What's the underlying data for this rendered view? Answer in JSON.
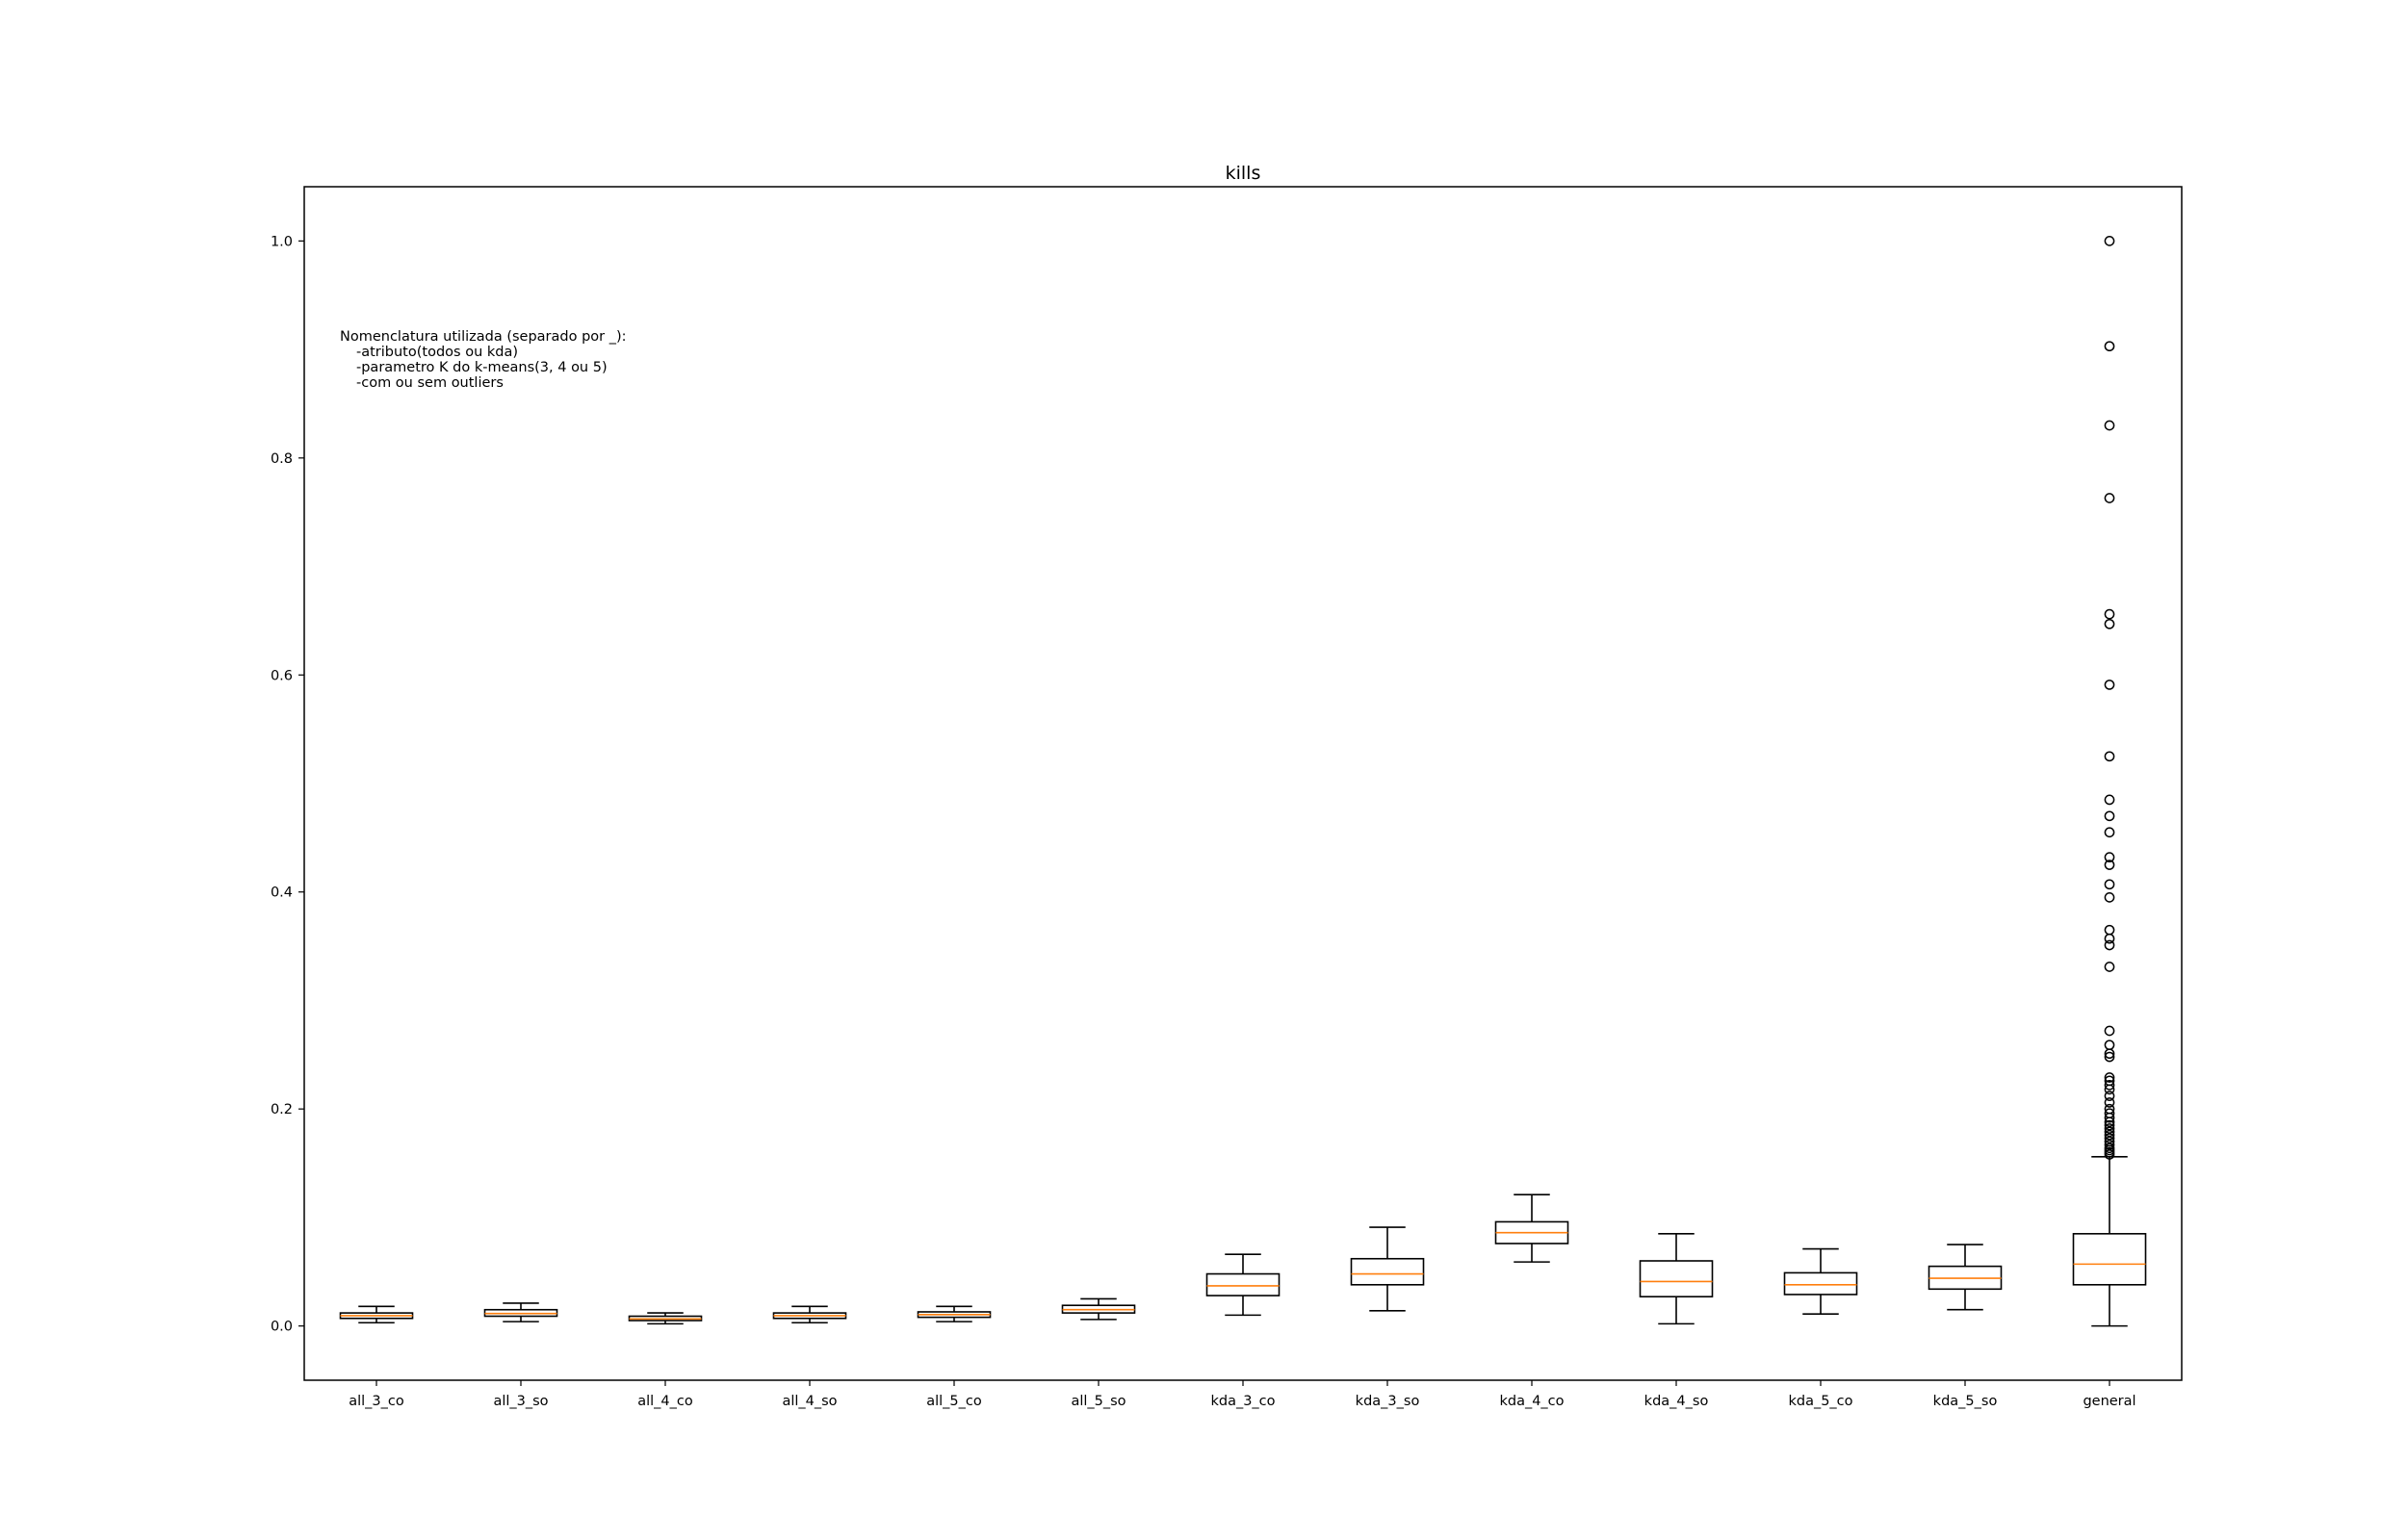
{
  "chart_data": {
    "type": "boxplot",
    "title": "kills",
    "xlabel": "",
    "ylabel": "",
    "ylim": [
      -0.05,
      1.05
    ],
    "yticks": [
      0.0,
      0.2,
      0.4,
      0.6,
      0.8,
      1.0
    ],
    "ytick_labels": [
      "0.0",
      "0.2",
      "0.4",
      "0.6",
      "0.8",
      "1.0"
    ],
    "grid": false,
    "annotation": [
      "Nomenclatura utilizada (separado por _):",
      "-atributo(todos ou kda)",
      "-parametro K do k-means(3, 4 ou 5)",
      "-com ou sem outliers"
    ],
    "colors": {
      "median": "#ff7f0e",
      "box": "#000000"
    },
    "boxes": [
      {
        "label": "all_3_co",
        "whislo": 0.003,
        "q1": 0.007,
        "med": 0.0095,
        "q3": 0.012,
        "whishi": 0.018,
        "fliers": []
      },
      {
        "label": "all_3_so",
        "whislo": 0.004,
        "q1": 0.009,
        "med": 0.0115,
        "q3": 0.015,
        "whishi": 0.021,
        "fliers": []
      },
      {
        "label": "all_4_co",
        "whislo": 0.002,
        "q1": 0.005,
        "med": 0.0065,
        "q3": 0.009,
        "whishi": 0.012,
        "fliers": []
      },
      {
        "label": "all_4_so",
        "whislo": 0.003,
        "q1": 0.007,
        "med": 0.0095,
        "q3": 0.012,
        "whishi": 0.018,
        "fliers": []
      },
      {
        "label": "all_5_co",
        "whislo": 0.004,
        "q1": 0.008,
        "med": 0.0105,
        "q3": 0.013,
        "whishi": 0.018,
        "fliers": []
      },
      {
        "label": "all_5_so",
        "whislo": 0.006,
        "q1": 0.012,
        "med": 0.015,
        "q3": 0.019,
        "whishi": 0.025,
        "fliers": []
      },
      {
        "label": "kda_3_co",
        "whislo": 0.01,
        "q1": 0.028,
        "med": 0.037,
        "q3": 0.048,
        "whishi": 0.066,
        "fliers": []
      },
      {
        "label": "kda_3_so",
        "whislo": 0.014,
        "q1": 0.038,
        "med": 0.048,
        "q3": 0.062,
        "whishi": 0.091,
        "fliers": []
      },
      {
        "label": "kda_4_co",
        "whislo": 0.059,
        "q1": 0.076,
        "med": 0.086,
        "q3": 0.096,
        "whishi": 0.121,
        "fliers": []
      },
      {
        "label": "kda_4_so",
        "whislo": 0.002,
        "q1": 0.027,
        "med": 0.041,
        "q3": 0.06,
        "whishi": 0.085,
        "fliers": []
      },
      {
        "label": "kda_5_co",
        "whislo": 0.011,
        "q1": 0.029,
        "med": 0.038,
        "q3": 0.049,
        "whishi": 0.071,
        "fliers": []
      },
      {
        "label": "kda_5_so",
        "whislo": 0.015,
        "q1": 0.034,
        "med": 0.044,
        "q3": 0.055,
        "whishi": 0.075,
        "fliers": []
      },
      {
        "label": "general",
        "whislo": 0.0,
        "q1": 0.038,
        "med": 0.057,
        "q3": 0.085,
        "whishi": 0.156,
        "fliers": [
          1.0,
          0.903,
          0.83,
          0.763,
          0.656,
          0.647,
          0.591,
          0.525,
          0.485,
          0.47,
          0.455,
          0.432,
          0.425,
          0.407,
          0.395,
          0.365,
          0.357,
          0.351,
          0.331,
          0.272,
          0.259,
          0.251,
          0.248,
          0.229,
          0.226,
          0.222,
          0.218,
          0.212,
          0.206,
          0.2,
          0.196,
          0.192,
          0.188,
          0.185,
          0.182,
          0.179,
          0.176,
          0.173,
          0.17,
          0.167,
          0.164,
          0.162,
          0.16,
          0.158
        ]
      }
    ]
  }
}
